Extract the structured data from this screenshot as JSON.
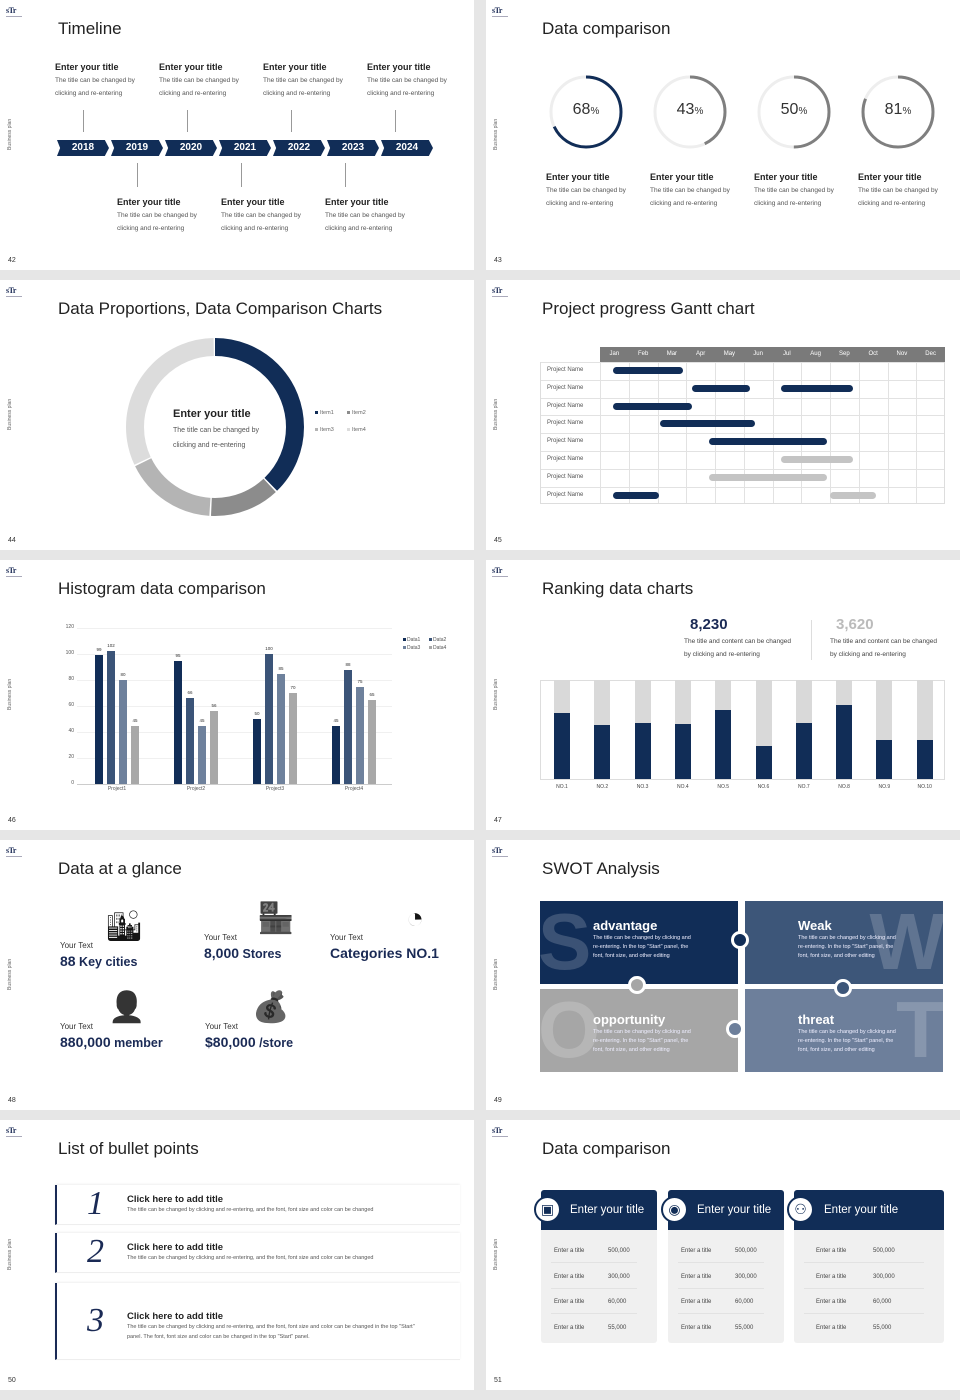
{
  "common": {
    "logo": "sTr",
    "side_label": "Business plan"
  },
  "slides": [
    {
      "page": "42",
      "title": "Timeline",
      "years": [
        "2018",
        "2019",
        "2020",
        "2021",
        "2022",
        "2023",
        "2024"
      ],
      "item_title": "Enter your title",
      "item_desc_1": "The title can be changed by",
      "item_desc_2": "clicking and re-entering"
    },
    {
      "page": "43",
      "title": "Data comparison",
      "rings": [
        {
          "value": 68,
          "color": "#112d57"
        },
        {
          "value": 43,
          "color": "#7f7f7f"
        },
        {
          "value": 50,
          "color": "#7f7f7f"
        },
        {
          "value": 81,
          "color": "#7f7f7f"
        }
      ],
      "unit": "%",
      "item_title": "Enter your title",
      "item_desc_1": "The title can be changed by",
      "item_desc_2": "clicking and re-entering"
    },
    {
      "page": "44",
      "title": "Data Proportions, Data Comparison Charts",
      "center_title": "Enter your title",
      "center_desc_1": "The title can be changed by",
      "center_desc_2": "clicking and re-entering",
      "chart_data": {
        "type": "pie",
        "categories": [
          "Item1",
          "Item2",
          "Item3",
          "Item4"
        ],
        "values": [
          38,
          13,
          17,
          32
        ],
        "colors": [
          "#112d57",
          "#8c8c8c",
          "#b4b4b4",
          "#dcdcdc"
        ],
        "legend": "right"
      }
    },
    {
      "page": "45",
      "title": "Project progress Gantt chart",
      "chart_data": {
        "type": "gantt",
        "months": [
          "Jan",
          "Feb",
          "Mar",
          "Apr",
          "May",
          "Jun",
          "Jul",
          "Aug",
          "Sep",
          "Oct",
          "Nov",
          "Dec"
        ],
        "rows": [
          {
            "name": "Project Name",
            "bars": [
              {
                "start": 0.45,
                "end": 2.9,
                "color": "#112d57"
              }
            ]
          },
          {
            "name": "Project Name",
            "bars": [
              {
                "start": 3.2,
                "end": 5.2,
                "color": "#112d57"
              },
              {
                "start": 6.3,
                "end": 8.8,
                "color": "#112d57"
              }
            ]
          },
          {
            "name": "Project Name",
            "bars": [
              {
                "start": 0.45,
                "end": 3.2,
                "color": "#112d57"
              }
            ]
          },
          {
            "name": "Project Name",
            "bars": [
              {
                "start": 2.1,
                "end": 5.4,
                "color": "#112d57"
              }
            ]
          },
          {
            "name": "Project Name",
            "bars": [
              {
                "start": 3.8,
                "end": 7.9,
                "color": "#112d57"
              }
            ]
          },
          {
            "name": "Project Name",
            "bars": [
              {
                "start": 6.3,
                "end": 8.8,
                "color": "#c4c4c4"
              }
            ]
          },
          {
            "name": "Project Name",
            "bars": [
              {
                "start": 3.8,
                "end": 7.9,
                "color": "#c4c4c4"
              }
            ]
          },
          {
            "name": "Project Name",
            "bars": [
              {
                "start": 0.45,
                "end": 2.05,
                "color": "#112d57"
              },
              {
                "start": 8.0,
                "end": 9.6,
                "color": "#c4c4c4"
              }
            ]
          }
        ]
      }
    },
    {
      "page": "46",
      "title": "Histogram data comparison",
      "chart_data": {
        "type": "bar",
        "categories": [
          "Project1",
          "Project2",
          "Project3",
          "Project4"
        ],
        "ylim": [
          0,
          120
        ],
        "yticks": [
          0,
          20,
          40,
          60,
          80,
          100,
          120
        ],
        "legend": "top-right",
        "series": [
          {
            "name": "Data1",
            "values": [
              99,
              95,
              50,
              45
            ],
            "color": "#112d57"
          },
          {
            "name": "Data2",
            "values": [
              102,
              66,
              100,
              88
            ],
            "color": "#3b5478"
          },
          {
            "name": "Data3",
            "values": [
              80,
              45,
              85,
              75
            ],
            "color": "#6e819c"
          },
          {
            "name": "Data4",
            "values": [
              45,
              56,
              70,
              65
            ],
            "color": "#a8a8a8"
          }
        ]
      }
    },
    {
      "page": "47",
      "title": "Ranking data charts",
      "stats": [
        {
          "value": "8,230",
          "desc_1": "The title and content can be changed",
          "desc_2": "by clicking and re-entering"
        },
        {
          "value": "3,620",
          "desc_1": "The title and content can be changed",
          "desc_2": "by clicking and re-entering"
        }
      ],
      "chart_data": {
        "type": "bar",
        "stacked": true,
        "categories": [
          "NO.1",
          "NO.2",
          "NO.3",
          "NO.4",
          "NO.5",
          "NO.6",
          "NO.7",
          "NO.8",
          "NO.9",
          "NO.10"
        ],
        "values": [
          0.67,
          0.55,
          0.57,
          0.56,
          0.7,
          0.33,
          0.57,
          0.75,
          0.39,
          0.39
        ],
        "ylim": [
          0,
          1
        ],
        "colors": [
          "#112d57",
          "#d9d9d9"
        ]
      }
    },
    {
      "page": "48",
      "title": "Data at a glance",
      "items": [
        {
          "label": "Your Text",
          "value": "88",
          "unit": " Key cities",
          "icon": "city-buildings-icon"
        },
        {
          "label": "Your Text",
          "value": "8,000",
          "unit": " Stores",
          "icon": "store-icon"
        },
        {
          "label": "Your Text",
          "value": "Categories ",
          "unit": "NO.1",
          "icon": "pie-chart-icon"
        },
        {
          "label": "Your Text",
          "value": "880,000",
          "unit": " member",
          "icon": "person-add-icon"
        },
        {
          "label": "Your Text",
          "value": "$80,000",
          "unit": " /store",
          "icon": "money-coins-icon"
        }
      ]
    },
    {
      "page": "49",
      "title": "SWOT Analysis",
      "quadrants": [
        {
          "letter": "S",
          "title": "advantage",
          "color": "#112d57"
        },
        {
          "letter": "W",
          "title": "Weak",
          "color": "#3d5679"
        },
        {
          "letter": "O",
          "title": "opportunity",
          "color": "#a6a6a6"
        },
        {
          "letter": "T",
          "title": "threat",
          "color": "#6d7f9b"
        }
      ],
      "desc_1": "The title can be changed by clicking and",
      "desc_2": "re-entering. In the top \"Start\" panel, the",
      "desc_3": "font, font size, and other editing"
    },
    {
      "page": "50",
      "title": "List of bullet points",
      "items": [
        {
          "num": "1",
          "title": "Click here to add title",
          "desc": "The title can be changed by clicking and re-entering, and the font, font size and color can be changed"
        },
        {
          "num": "2",
          "title": "Click here to add title",
          "desc": "The title can be changed by clicking and re-entering, and the font, font size and color can be changed"
        },
        {
          "num": "3",
          "title": "Click here to add title",
          "desc": "The title can be changed by clicking and re-entering, and the font, font size and color can be changed in the top \"Start\"",
          "desc_2": "panel. The font, font size and color can be changed in the top \"Start\" panel."
        }
      ]
    },
    {
      "page": "51",
      "title": "Data comparison",
      "cards": [
        {
          "title": "Enter your title",
          "icon": "tablet-user-add-icon",
          "rows": [
            [
              "Enter a title",
              "500,000"
            ],
            [
              "Enter a title",
              "300,000"
            ],
            [
              "Enter a title",
              "60,000"
            ],
            [
              "Enter a title",
              "55,000"
            ]
          ]
        },
        {
          "title": "Enter your title",
          "icon": "user-settings-icon",
          "rows": [
            [
              "Enter a title",
              "500,000"
            ],
            [
              "Enter a title",
              "300,000"
            ],
            [
              "Enter a title",
              "60,000"
            ],
            [
              "Enter a title",
              "55,000"
            ]
          ]
        },
        {
          "title": "Enter your title",
          "icon": "user-group-icon",
          "rows": [
            [
              "Enter a title",
              "500,000"
            ],
            [
              "Enter a title",
              "300,000"
            ],
            [
              "Enter a title",
              "60,000"
            ],
            [
              "Enter a title",
              "55,000"
            ]
          ]
        }
      ]
    }
  ]
}
